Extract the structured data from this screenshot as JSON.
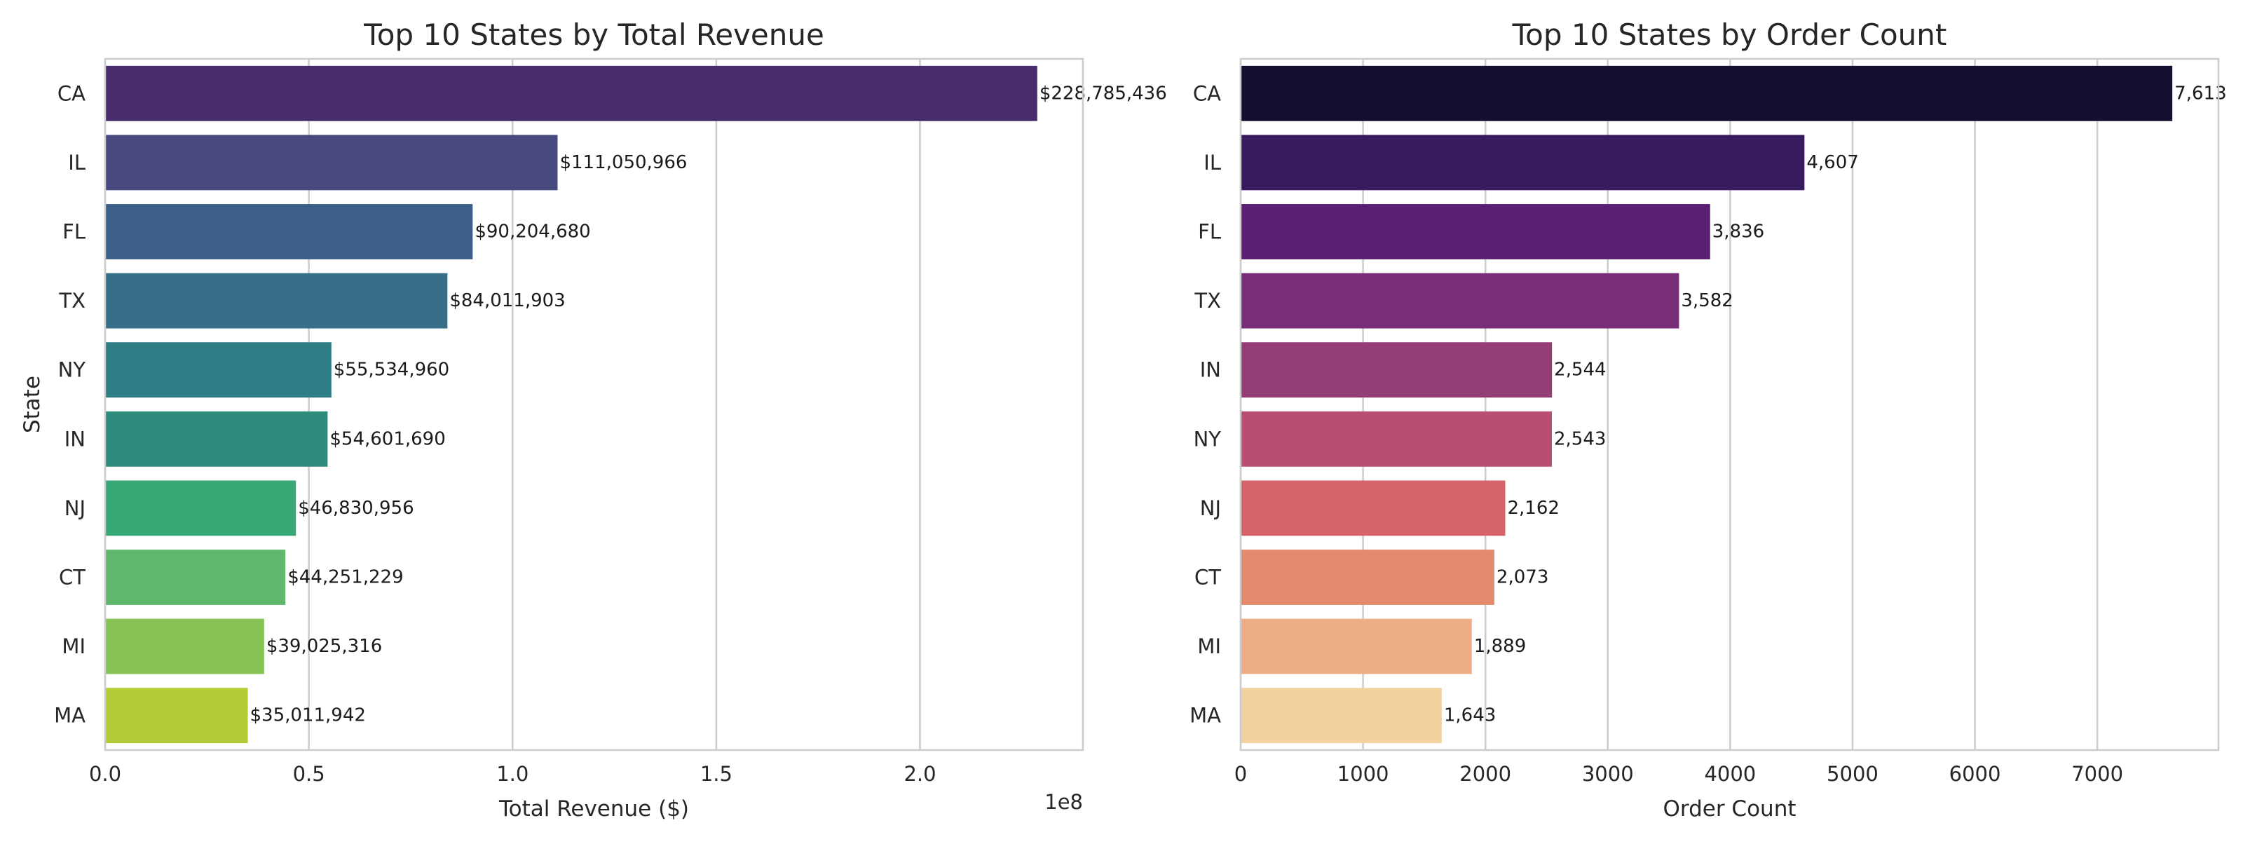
{
  "chart_data": [
    {
      "type": "bar",
      "orientation": "horizontal",
      "title": "Top 10 States by Total Revenue",
      "xlabel": "Total Revenue ($)",
      "ylabel": "State",
      "axis_multiplier": "1e8",
      "categories": [
        "CA",
        "IL",
        "FL",
        "TX",
        "NY",
        "IN",
        "NJ",
        "CT",
        "MI",
        "MA"
      ],
      "values": [
        228785436,
        111050966,
        90204680,
        84011903,
        55534960,
        54601690,
        46830956,
        44251229,
        39025316,
        35011942
      ],
      "data_labels": [
        "$228,785,436",
        "$111,050,966",
        "$90,204,680",
        "$84,011,903",
        "$55,534,960",
        "$54,601,690",
        "$46,830,956",
        "$44,251,229",
        "$39,025,316",
        "$35,011,942"
      ],
      "xlim": [
        0,
        240000000
      ],
      "xticks": [
        0,
        50000000,
        100000000,
        150000000,
        200000000
      ],
      "xtick_labels": [
        "0.0",
        "0.5",
        "1.0",
        "1.5",
        "2.0"
      ],
      "colors": [
        "#472c6e",
        "#47497f",
        "#3c5f8a",
        "#376f88",
        "#2f7d85",
        "#2d8b7b",
        "#38a877",
        "#60b86e",
        "#88c358",
        "#b4cb37"
      ],
      "grid": "x",
      "legend": "none"
    },
    {
      "type": "bar",
      "orientation": "horizontal",
      "title": "Top 10 States by Order Count",
      "xlabel": "Order Count",
      "ylabel": "",
      "categories": [
        "CA",
        "IL",
        "FL",
        "TX",
        "IN",
        "NY",
        "NJ",
        "CT",
        "MI",
        "MA"
      ],
      "values": [
        7613,
        4607,
        3836,
        3582,
        2544,
        2543,
        2162,
        2073,
        1889,
        1643
      ],
      "data_labels": [
        "7,613",
        "4,607",
        "3,836",
        "3,582",
        "2,544",
        "2,543",
        "2,162",
        "2,073",
        "1,889",
        "1,643"
      ],
      "xlim": [
        0,
        7990
      ],
      "xticks": [
        0,
        1000,
        2000,
        3000,
        4000,
        5000,
        6000,
        7000
      ],
      "xtick_labels": [
        "0",
        "1000",
        "2000",
        "3000",
        "4000",
        "5000",
        "6000",
        "7000"
      ],
      "colors": [
        "#140f30",
        "#371b5e",
        "#5a1f72",
        "#772d77",
        "#943e75",
        "#b94e73",
        "#d7636c",
        "#e48a6d",
        "#ecae84",
        "#f2d29e"
      ],
      "grid": "x",
      "legend": "none"
    }
  ]
}
